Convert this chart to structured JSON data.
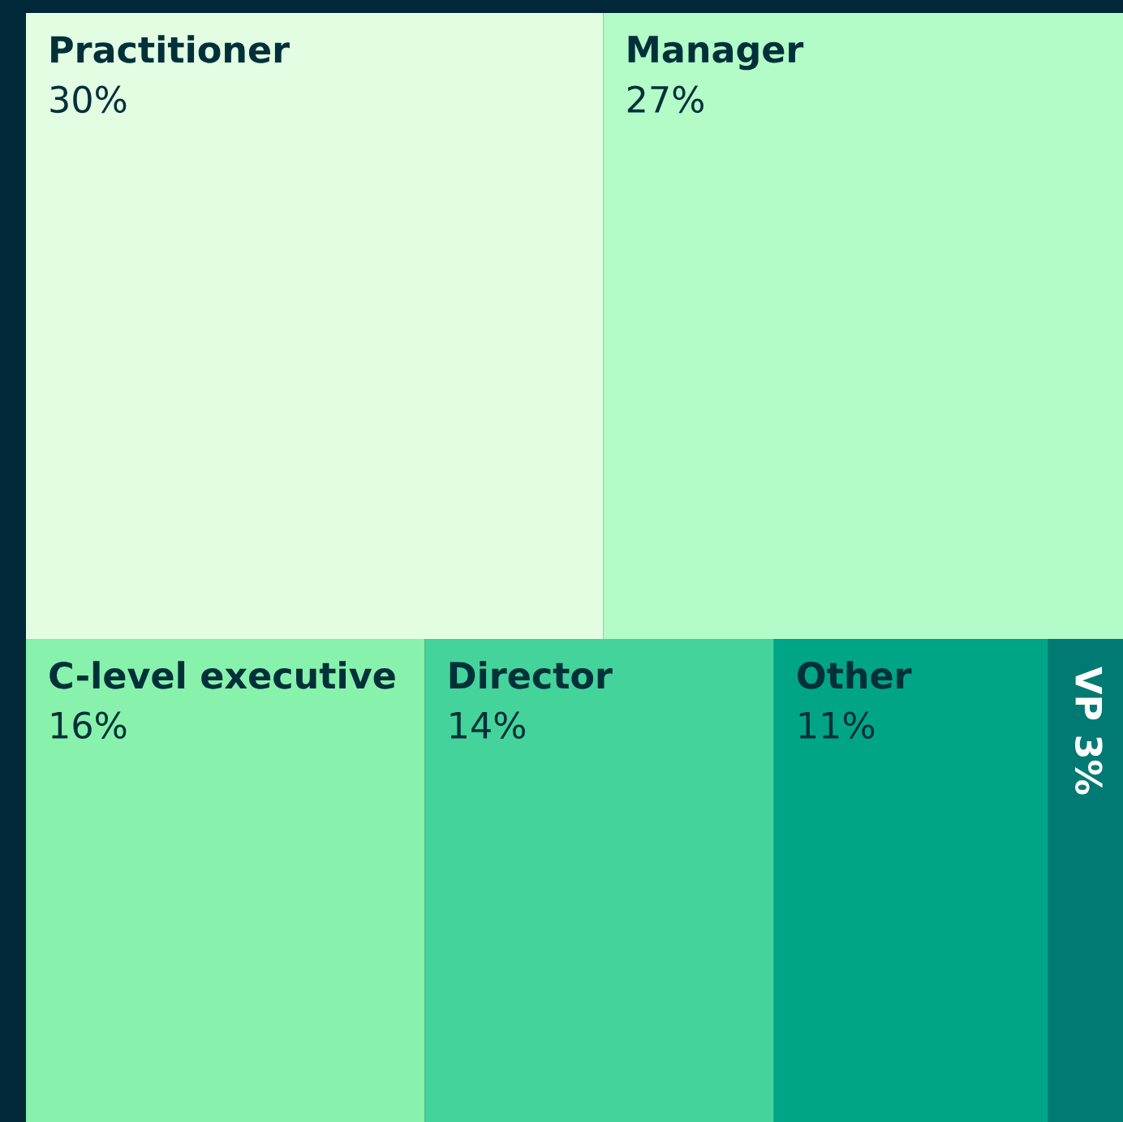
{
  "chart_data": {
    "type": "other",
    "categories": [
      "Practitioner",
      "Manager",
      "C-level executive",
      "Director",
      "Other",
      "VP"
    ],
    "values": [
      30,
      27,
      16,
      14,
      11,
      3
    ],
    "value_labels": [
      "30%",
      "27%",
      "16%",
      "14%",
      "11%",
      "3%"
    ],
    "colors": [
      "#e3fde3",
      "#b3fcc8",
      "#88f2ac",
      "#45d39c",
      "#00a587",
      "#007a73"
    ]
  }
}
